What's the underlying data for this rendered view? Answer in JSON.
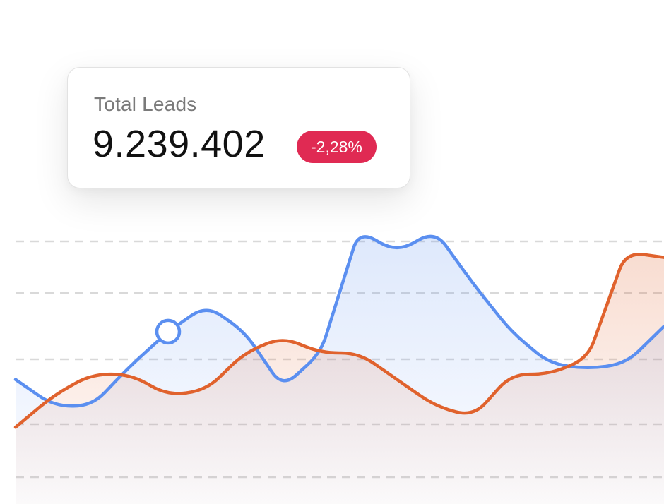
{
  "card": {
    "label": "Total Leads",
    "value": "9.239.402",
    "change": "-2,28%",
    "change_color": "#e02a53"
  },
  "chart_data": {
    "type": "area",
    "title": "",
    "xlabel": "",
    "ylabel": "",
    "x": [
      0,
      1,
      2,
      3,
      4,
      5,
      6,
      7,
      8,
      9,
      10,
      11,
      12,
      13,
      14,
      15,
      16,
      17
    ],
    "ylim": [
      0,
      100
    ],
    "grid": true,
    "legend": "none",
    "series": [
      {
        "color": "#5b8ff0",
        "values": [
          40,
          30,
          30,
          45,
          58,
          68,
          58,
          37,
          50,
          96,
          88,
          96,
          76,
          58,
          46,
          44,
          46,
          60
        ]
      },
      {
        "color": "#e0622d",
        "values": [
          22,
          34,
          42,
          42,
          34,
          36,
          50,
          56,
          50,
          50,
          40,
          30,
          26,
          42,
          42,
          48,
          88,
          86
        ]
      }
    ],
    "highlight": {
      "series": 0,
      "index": 4
    }
  }
}
